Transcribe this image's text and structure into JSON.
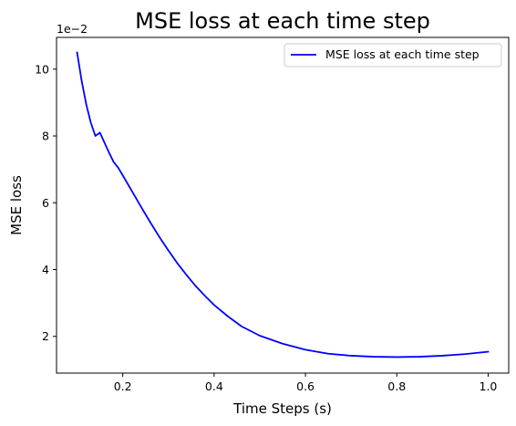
{
  "chart_data": {
    "type": "line",
    "title": "MSE loss at each time step",
    "xlabel": "Time Steps (s)",
    "ylabel": "MSE loss",
    "y_offset_label": "1e−2",
    "xlim": [
      0.055,
      1.045
    ],
    "ylim": [
      0.9,
      10.95
    ],
    "x_ticks": [
      0.2,
      0.4,
      0.6,
      0.8,
      1.0
    ],
    "x_tick_labels": [
      "0.2",
      "0.4",
      "0.6",
      "0.8",
      "1.0"
    ],
    "y_ticks": [
      2,
      4,
      6,
      8,
      10
    ],
    "y_tick_labels": [
      "2",
      "4",
      "6",
      "8",
      "10"
    ],
    "grid": false,
    "legend_placement": "upper-right",
    "series": [
      {
        "name": "MSE loss at each time step",
        "color": "#0000ff",
        "x": [
          0.1,
          0.11,
          0.12,
          0.13,
          0.14,
          0.15,
          0.16,
          0.17,
          0.18,
          0.19,
          0.2,
          0.22,
          0.24,
          0.26,
          0.28,
          0.3,
          0.32,
          0.34,
          0.36,
          0.38,
          0.4,
          0.43,
          0.46,
          0.5,
          0.55,
          0.6,
          0.65,
          0.7,
          0.75,
          0.8,
          0.85,
          0.9,
          0.95,
          1.0
        ],
        "y": [
          10.5,
          9.65,
          8.95,
          8.4,
          8.0,
          8.1,
          7.8,
          7.5,
          7.22,
          7.05,
          6.82,
          6.35,
          5.88,
          5.42,
          4.98,
          4.57,
          4.18,
          3.83,
          3.5,
          3.21,
          2.94,
          2.6,
          2.3,
          2.02,
          1.78,
          1.6,
          1.48,
          1.42,
          1.39,
          1.38,
          1.39,
          1.42,
          1.47,
          1.54
        ]
      }
    ]
  }
}
